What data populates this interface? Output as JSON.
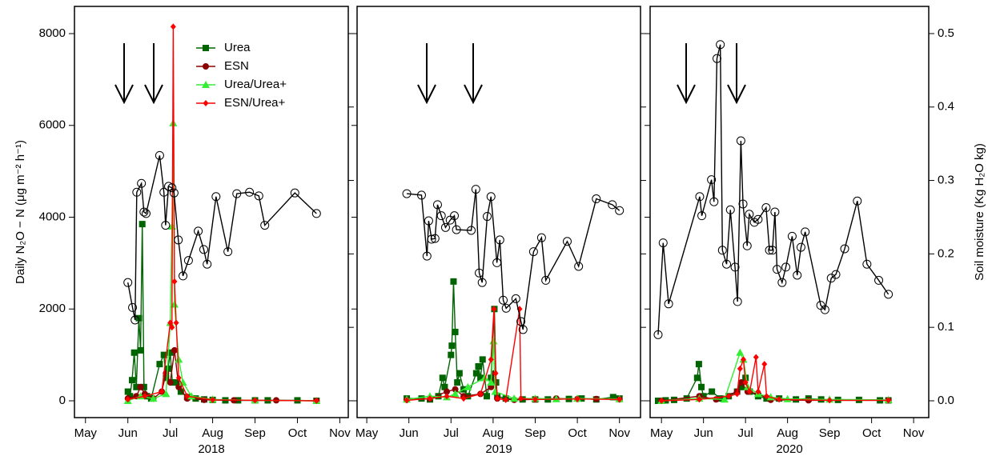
{
  "chart_data": [
    {
      "type": "line",
      "xlabel": "2018",
      "ylabel": "Daily N₂O − N (μg m⁻² h⁻¹)",
      "xlim": [
        4.74,
        11.2
      ],
      "xticks": [
        {
          "value": 5,
          "label": "May"
        },
        {
          "value": 6,
          "label": "Jun"
        },
        {
          "value": 7,
          "label": "Jul"
        },
        {
          "value": 8,
          "label": "Aug"
        },
        {
          "value": 9,
          "label": "Sep"
        },
        {
          "value": 10,
          "label": "Oct"
        },
        {
          "value": 11,
          "label": "Nov"
        }
      ],
      "ylim": [
        -366,
        8593
      ],
      "yticks": [
        0,
        2000,
        4000,
        6000,
        8000
      ],
      "legend": "top",
      "series": [
        {
          "name": "Urea",
          "color": "#006400",
          "marker": "square",
          "x": [
            6.0,
            6.05,
            6.1,
            6.15,
            6.2,
            6.26,
            6.3,
            6.34,
            6.38,
            6.45,
            6.55,
            6.75,
            6.85,
            6.9,
            6.95,
            7.0,
            7.05,
            7.15,
            7.25,
            7.4,
            7.6,
            7.8,
            8.0,
            8.3,
            8.6,
            9.0,
            9.3,
            10.0,
            10.45
          ],
          "values": [
            200,
            100,
            450,
            1050,
            300,
            1800,
            1100,
            3850,
            300,
            100,
            50,
            800,
            1000,
            500,
            700,
            1050,
            400,
            400,
            200,
            80,
            50,
            30,
            20,
            10,
            10,
            10,
            10,
            10,
            0
          ]
        },
        {
          "name": "ESN",
          "color": "#8b0000",
          "marker": "circle",
          "x": [
            6.0,
            6.2,
            6.3,
            6.4,
            6.6,
            6.8,
            6.9,
            7.0,
            7.1,
            7.2,
            7.4,
            7.8,
            8.5,
            9.5,
            10.45
          ],
          "values": [
            50,
            100,
            300,
            150,
            50,
            200,
            600,
            400,
            1100,
            300,
            50,
            20,
            10,
            10,
            0
          ]
        },
        {
          "name": "Urea/Urea+",
          "color": "#33ee33",
          "marker": "triangle",
          "x": [
            6.0,
            6.3,
            6.6,
            6.9,
            7.0,
            7.04,
            7.07,
            7.1,
            7.2,
            7.3,
            7.5,
            8.0,
            9.0,
            10.45
          ],
          "values": [
            0,
            100,
            50,
            150,
            1700,
            3800,
            6050,
            2100,
            900,
            400,
            100,
            30,
            10,
            0
          ]
        },
        {
          "name": "ESN/Urea+",
          "color": "#ff0000",
          "marker": "diamond",
          "x": [
            6.0,
            6.4,
            6.8,
            7.0,
            7.04,
            7.07,
            7.1,
            7.14,
            7.2,
            7.4,
            8.0,
            9.0,
            10.45
          ],
          "values": [
            30,
            100,
            200,
            1700,
            1600,
            8150,
            2600,
            1700,
            500,
            100,
            20,
            10,
            0
          ]
        },
        {
          "axis": "y2",
          "color": "#000000",
          "marker": "open-circle",
          "x": [
            6.0,
            6.11,
            6.17,
            6.21,
            6.32,
            6.38,
            6.43,
            6.75,
            6.85,
            6.89,
            6.96,
            7.04,
            7.09,
            7.19,
            7.3,
            7.43,
            7.66,
            7.79,
            7.87,
            8.08,
            8.36,
            8.57,
            8.87,
            9.09,
            9.23,
            9.94,
            10.45
          ],
          "values": [
            0.161,
            0.127,
            0.11,
            0.284,
            0.296,
            0.257,
            0.255,
            0.334,
            0.284,
            0.239,
            0.292,
            0.29,
            0.283,
            0.219,
            0.17,
            0.191,
            0.231,
            0.206,
            0.186,
            0.278,
            0.203,
            0.282,
            0.284,
            0.279,
            0.239,
            0.283,
            0.255
          ]
        }
      ]
    },
    {
      "type": "line",
      "xlabel": "2019",
      "xlim": [
        4.77,
        11.5
      ],
      "xticks": [
        {
          "value": 5,
          "label": "May"
        },
        {
          "value": 6,
          "label": "Jun"
        },
        {
          "value": 7,
          "label": "Jul"
        },
        {
          "value": 8,
          "label": "Aug"
        },
        {
          "value": 9,
          "label": "Sep"
        },
        {
          "value": 10,
          "label": "Oct"
        },
        {
          "value": 11,
          "label": "Nov"
        }
      ],
      "series": [
        {
          "name": "Urea",
          "color": "#006400",
          "marker": "square",
          "x": [
            5.95,
            6.3,
            6.5,
            6.7,
            6.8,
            6.85,
            7.0,
            7.02,
            7.06,
            7.1,
            7.15,
            7.2,
            7.3,
            7.4,
            7.6,
            7.65,
            7.7,
            7.75,
            7.85,
            7.95,
            8.03,
            8.07,
            8.1,
            8.3,
            8.7,
            9.0,
            9.3,
            9.8,
            10.1,
            10.45,
            10.85,
            11.0
          ],
          "values": [
            50,
            50,
            30,
            100,
            500,
            300,
            1000,
            1200,
            2600,
            1500,
            400,
            600,
            250,
            100,
            600,
            750,
            500,
            900,
            100,
            500,
            2000,
            400,
            100,
            50,
            30,
            30,
            30,
            40,
            50,
            30,
            80,
            50
          ]
        },
        {
          "name": "ESN",
          "color": "#8b0000",
          "marker": "circle",
          "x": [
            5.95,
            6.5,
            6.9,
            7.1,
            7.3,
            7.7,
            7.95,
            8.03,
            8.1,
            8.5,
            9.0,
            9.5,
            10.0,
            10.45,
            11.0
          ],
          "values": [
            20,
            50,
            200,
            250,
            100,
            150,
            300,
            600,
            50,
            20,
            30,
            50,
            40,
            40,
            30
          ]
        },
        {
          "name": "Urea/Urea+",
          "color": "#33ee33",
          "marker": "triangle",
          "x": [
            5.95,
            6.5,
            6.9,
            7.1,
            7.4,
            7.8,
            7.95,
            8.01,
            8.05,
            8.5,
            9.0,
            9.5,
            10.0,
            11.0
          ],
          "values": [
            30,
            100,
            80,
            150,
            300,
            500,
            400,
            1300,
            200,
            50,
            50,
            40,
            50,
            40
          ]
        },
        {
          "name": "ESN/Urea+",
          "color": "#ff0000",
          "marker": "diamond",
          "x": [
            5.95,
            6.5,
            6.9,
            7.3,
            7.7,
            7.95,
            8.02,
            8.06,
            8.1,
            8.3,
            8.63,
            8.66,
            9.0,
            10.0,
            11.0
          ],
          "values": [
            10,
            50,
            100,
            50,
            150,
            900,
            2000,
            600,
            50,
            20,
            2000,
            50,
            30,
            40,
            30
          ]
        },
        {
          "axis": "y2",
          "color": "#000000",
          "marker": "open-circle",
          "x": [
            5.95,
            6.3,
            6.43,
            6.47,
            6.54,
            6.62,
            6.68,
            6.77,
            6.87,
            6.98,
            7.08,
            7.13,
            7.48,
            7.59,
            7.67,
            7.74,
            7.86,
            7.95,
            8.09,
            8.16,
            8.24,
            8.31,
            8.54,
            8.66,
            8.71,
            8.96,
            9.15,
            9.25,
            9.76,
            10.03,
            10.45,
            10.83,
            11.0
          ],
          "values": [
            0.282,
            0.28,
            0.197,
            0.245,
            0.22,
            0.221,
            0.267,
            0.252,
            0.236,
            0.246,
            0.252,
            0.233,
            0.232,
            0.288,
            0.174,
            0.161,
            0.251,
            0.278,
            0.188,
            0.219,
            0.137,
            0.126,
            0.139,
            0.108,
            0.097,
            0.203,
            0.222,
            0.164,
            0.217,
            0.183,
            0.275,
            0.267,
            0.259
          ]
        }
      ]
    },
    {
      "type": "line",
      "xlabel": "2020",
      "y2label": "Soil moisture (Kg H₂O kg)",
      "xlim": [
        4.73,
        11.36
      ],
      "xticks": [
        {
          "value": 5,
          "label": "May"
        },
        {
          "value": 6,
          "label": "Jun"
        },
        {
          "value": 7,
          "label": "Jul"
        },
        {
          "value": 8,
          "label": "Aug"
        },
        {
          "value": 9,
          "label": "Sep"
        },
        {
          "value": 10,
          "label": "Oct"
        },
        {
          "value": 11,
          "label": "Nov"
        }
      ],
      "y2lim": [
        -0.0229,
        0.537
      ],
      "y2ticks": [
        {
          "value": 0,
          "label": "0.0"
        },
        0.1,
        0.2,
        0.3,
        0.4,
        0.5
      ],
      "series": [
        {
          "name": "Urea",
          "color": "#006400",
          "marker": "square",
          "x": [
            4.92,
            5.1,
            5.3,
            5.6,
            5.85,
            5.89,
            5.95,
            6.0,
            6.2,
            6.4,
            6.6,
            6.8,
            6.9,
            7.0,
            7.1,
            7.3,
            7.5,
            7.8,
            8.2,
            8.5,
            8.8,
            9.2,
            9.7,
            10.2,
            10.4
          ],
          "values": [
            0,
            10,
            20,
            50,
            500,
            800,
            300,
            100,
            200,
            50,
            100,
            200,
            300,
            500,
            200,
            100,
            50,
            50,
            30,
            50,
            30,
            20,
            20,
            10,
            10
          ]
        },
        {
          "name": "ESN",
          "color": "#8b0000",
          "marker": "circle",
          "x": [
            5.0,
            5.9,
            6.3,
            6.8,
            6.9,
            7.05,
            7.3,
            7.6,
            8.5,
            10.4
          ],
          "values": [
            0,
            100,
            30,
            200,
            400,
            200,
            150,
            20,
            10,
            10
          ]
        },
        {
          "name": "Urea/Urea+",
          "color": "#33ee33",
          "marker": "triangle",
          "x": [
            5.0,
            5.9,
            6.5,
            6.87,
            6.95,
            7.05,
            7.3,
            7.6,
            8.0,
            9.0,
            10.4
          ],
          "values": [
            0,
            50,
            30,
            1050,
            900,
            300,
            150,
            80,
            40,
            30,
            20
          ]
        },
        {
          "name": "ESN/Urea+",
          "color": "#ff0000",
          "marker": "diamond",
          "x": [
            5.0,
            5.9,
            6.6,
            6.8,
            6.87,
            6.95,
            7.0,
            7.1,
            7.25,
            7.3,
            7.45,
            7.5,
            7.8,
            9.0,
            10.4
          ],
          "values": [
            0,
            30,
            100,
            150,
            700,
            900,
            400,
            200,
            950,
            200,
            800,
            100,
            30,
            10,
            10
          ]
        },
        {
          "axis": "y2",
          "color": "#000000",
          "marker": "open-circle",
          "x": [
            4.92,
            5.04,
            5.17,
            5.91,
            5.96,
            6.19,
            6.25,
            6.32,
            6.4,
            6.45,
            6.55,
            6.64,
            6.75,
            6.81,
            6.89,
            6.94,
            7.04,
            7.09,
            7.21,
            7.3,
            7.49,
            7.57,
            7.64,
            7.7,
            7.75,
            7.87,
            7.96,
            8.11,
            8.23,
            8.32,
            8.42,
            8.79,
            8.89,
            9.04,
            9.15,
            9.36,
            9.66,
            9.89,
            10.17,
            10.4
          ],
          "values": [
            0.09,
            0.215,
            0.132,
            0.278,
            0.252,
            0.301,
            0.271,
            0.466,
            0.485,
            0.205,
            0.186,
            0.26,
            0.182,
            0.135,
            0.354,
            0.268,
            0.211,
            0.254,
            0.243,
            0.247,
            0.263,
            0.205,
            0.205,
            0.257,
            0.179,
            0.161,
            0.182,
            0.224,
            0.171,
            0.209,
            0.23,
            0.13,
            0.124,
            0.167,
            0.172,
            0.207,
            0.272,
            0.186,
            0.164,
            0.145
          ]
        }
      ]
    }
  ]
}
